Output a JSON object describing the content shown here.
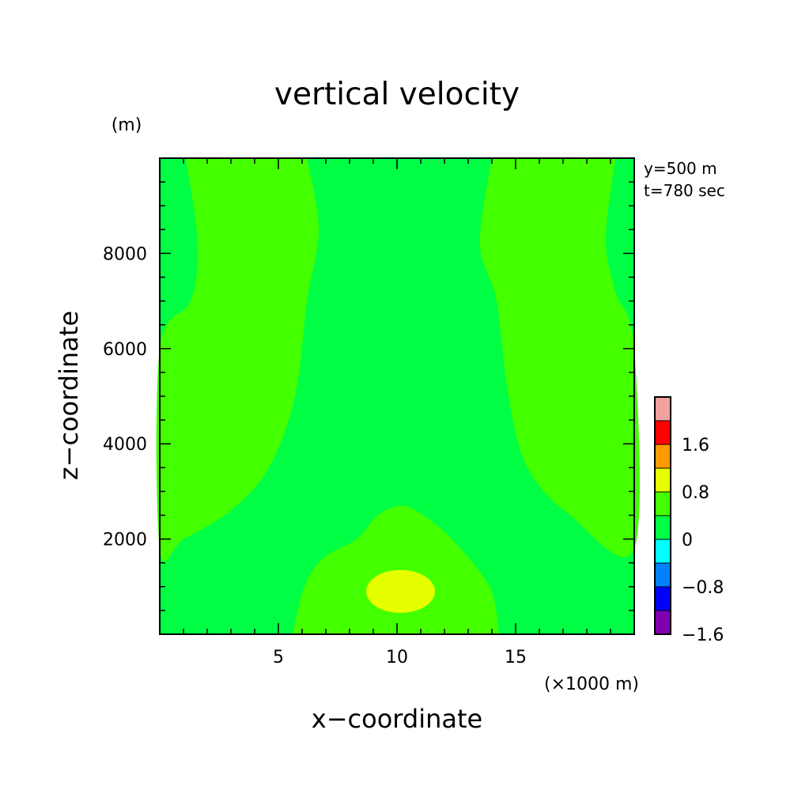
{
  "chart_data": {
    "type": "heatmap",
    "subtype": "filled-contour",
    "title": "vertical velocity",
    "xlabel": "x−coordinate",
    "ylabel": "z−coordinate",
    "x_unit": "(×1000 m)",
    "y_unit": "(m)",
    "annotations": [
      "y=500 m",
      "t=780 sec"
    ],
    "xlim": [
      0,
      20
    ],
    "ylim": [
      0,
      10000
    ],
    "xticks": [
      5,
      10,
      15
    ],
    "yticks": [
      2000,
      4000,
      6000,
      8000
    ],
    "x_minor_step": 1,
    "y_minor_step": 500,
    "grid": false,
    "colorbar": {
      "position": "right",
      "tick_labels": [
        "1.6",
        "0.8",
        "0",
        "−0.8",
        "−1.6"
      ],
      "tick_values": [
        1.6,
        0.8,
        0,
        -0.8,
        -1.6
      ],
      "levels": [
        {
          "lo": 2.0,
          "hi": 2.4,
          "color": "#f4a0a0"
        },
        {
          "lo": 1.6,
          "hi": 2.0,
          "color": "#ff0000"
        },
        {
          "lo": 1.2,
          "hi": 1.6,
          "color": "#ff9a00"
        },
        {
          "lo": 0.8,
          "hi": 1.2,
          "color": "#e6ff00"
        },
        {
          "lo": 0.4,
          "hi": 0.8,
          "color": "#44ff00"
        },
        {
          "lo": 0.0,
          "hi": 0.4,
          "color": "#00ff44"
        },
        {
          "lo": -0.4,
          "hi": 0.0,
          "color": "#00ffff"
        },
        {
          "lo": -0.8,
          "hi": -0.4,
          "color": "#0080ff"
        },
        {
          "lo": -1.2,
          "hi": -0.8,
          "color": "#0000ff"
        },
        {
          "lo": -1.6,
          "hi": -1.2,
          "color": "#8000b0"
        }
      ]
    },
    "regions": [
      {
        "name": "left-updraft",
        "value_range": [
          0.4,
          0.8
        ],
        "color": "#44ff00",
        "outline": [
          [
            1.1,
            10000
          ],
          [
            1.6,
            8200
          ],
          [
            1.3,
            7000
          ],
          [
            0,
            6000
          ],
          [
            0,
            1800
          ],
          [
            1,
            2000
          ],
          [
            3,
            2600
          ],
          [
            4.6,
            3500
          ],
          [
            5.7,
            5000
          ],
          [
            6.2,
            7000
          ],
          [
            6.7,
            8500
          ],
          [
            6.2,
            10000
          ]
        ]
      },
      {
        "name": "right-updraft",
        "value_range": [
          0.4,
          0.8
        ],
        "color": "#44ff00",
        "outline": [
          [
            14,
            10000
          ],
          [
            13.5,
            8200
          ],
          [
            14.2,
            7000
          ],
          [
            14.7,
            5000
          ],
          [
            15.5,
            3500
          ],
          [
            17.3,
            2500
          ],
          [
            20,
            1800
          ],
          [
            20,
            6000
          ],
          [
            19.2,
            7200
          ],
          [
            18.8,
            8300
          ],
          [
            19.2,
            10000
          ]
        ]
      },
      {
        "name": "bottom-updraft",
        "value_range": [
          0.4,
          0.8
        ],
        "color": "#44ff00",
        "outline": [
          [
            5.6,
            0
          ],
          [
            6.1,
            1000
          ],
          [
            6.9,
            1600
          ],
          [
            8.3,
            2000
          ],
          [
            9.2,
            2500
          ],
          [
            10.2,
            2700
          ],
          [
            11.1,
            2500
          ],
          [
            12.3,
            2000
          ],
          [
            13.9,
            1000
          ],
          [
            14.3,
            0
          ]
        ]
      },
      {
        "name": "core-max",
        "value_range": [
          0.8,
          1.2
        ],
        "color": "#e6ff00",
        "center": [
          10.15,
          900
        ],
        "radius_x": 1.45,
        "radius_y": 450
      }
    ]
  }
}
